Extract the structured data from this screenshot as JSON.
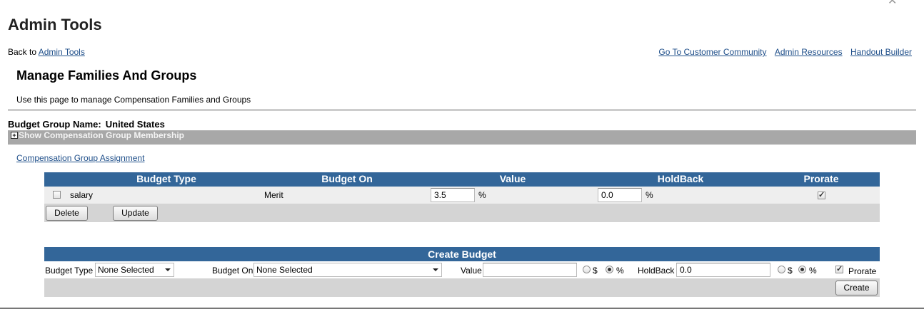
{
  "window": {
    "close_glyph": "✕"
  },
  "header": {
    "title": "Admin Tools",
    "back_prefix": "Back to",
    "back_link": "Admin Tools",
    "links": [
      "Go To Customer Community",
      "Admin Resources",
      "Handout Builder"
    ]
  },
  "section": {
    "title": "Manage Families And Groups",
    "description": "Use this page to manage Compensation Families and Groups"
  },
  "budget_group": {
    "label": "Budget Group Name:",
    "value": "United States",
    "membership_toggle": "Show Compensation Group Membership",
    "assignment_link": "Compensation Group Assignment"
  },
  "budget_table": {
    "columns": [
      "Budget Type",
      "Budget On",
      "Value",
      "HoldBack",
      "Prorate"
    ],
    "rows": [
      {
        "selected": false,
        "budget_type": "salary",
        "budget_on": "Merit",
        "value": "3.5",
        "value_unit": "%",
        "holdback": "0.0",
        "holdback_unit": "%",
        "prorate": true
      }
    ],
    "delete_label": "Delete",
    "update_label": "Update"
  },
  "create_budget": {
    "title": "Create Budget",
    "budget_type_label": "Budget Type",
    "budget_type_value": "None Selected",
    "budget_on_label": "Budget On",
    "budget_on_value": "None Selected",
    "value_label": "Value",
    "value_value": "",
    "value_unit_options": [
      "$",
      "%"
    ],
    "value_unit_selected": "%",
    "holdback_label": "HoldBack",
    "holdback_value": "0.0",
    "holdback_unit_options": [
      "$",
      "%"
    ],
    "holdback_unit_selected": "%",
    "prorate_label": "Prorate",
    "prorate_checked": true,
    "create_label": "Create"
  },
  "colors": {
    "header_blue": "#336699",
    "bar_gray": "#a8a8a8",
    "link": "#1f4f8a"
  }
}
